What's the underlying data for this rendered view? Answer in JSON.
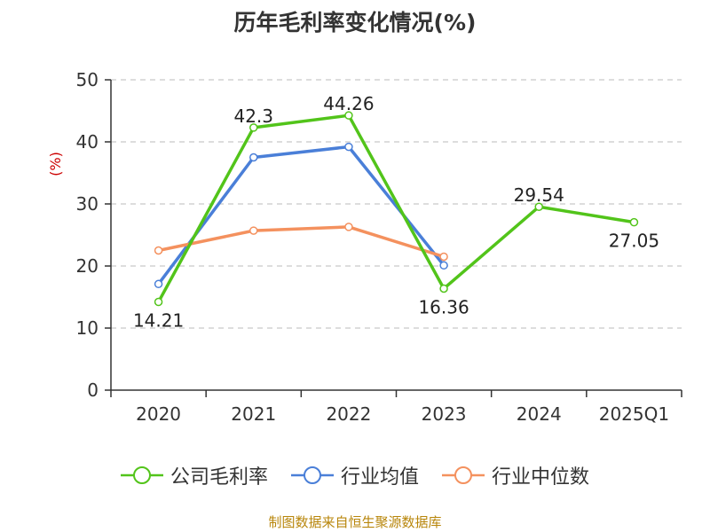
{
  "chart_data": {
    "type": "line",
    "title": "历年毛利率变化情况(%)",
    "ylabel": "(%)",
    "xlabel": "",
    "categories": [
      "2020",
      "2021",
      "2022",
      "2023",
      "2024",
      "2025Q1"
    ],
    "ylim": [
      0,
      50
    ],
    "yticks": [
      0,
      10,
      20,
      30,
      40,
      50
    ],
    "grid": true,
    "legend_position": "bottom",
    "series": [
      {
        "name": "公司毛利率",
        "color": "#52c41a",
        "values": [
          14.21,
          42.3,
          44.26,
          16.36,
          29.54,
          27.05
        ],
        "labels": [
          "14.21",
          "42.3",
          "44.26",
          "16.36",
          "29.54",
          "27.05"
        ]
      },
      {
        "name": "行业均值",
        "color": "#4a7fd8",
        "values": [
          17.1,
          37.5,
          39.2,
          20.1,
          null,
          null
        ]
      },
      {
        "name": "行业中位数",
        "color": "#f4915e",
        "values": [
          22.5,
          25.7,
          26.3,
          21.5,
          null,
          null
        ]
      }
    ]
  },
  "source_note": "制图数据来自恒生聚源数据库"
}
